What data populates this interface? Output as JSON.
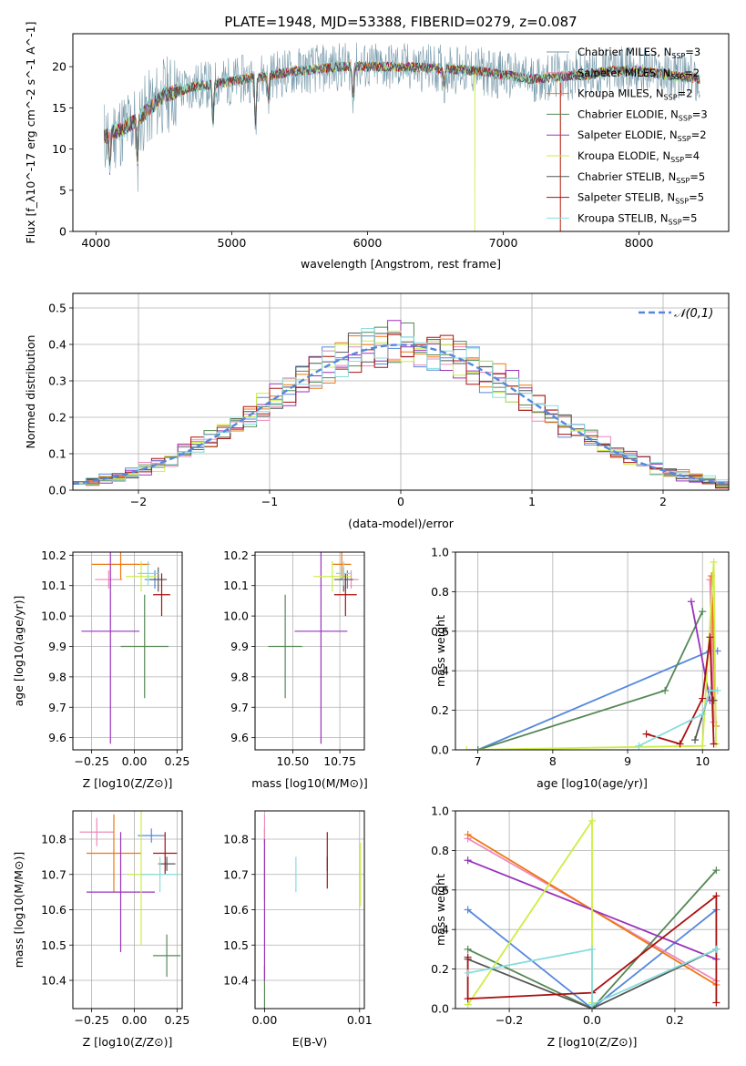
{
  "figure_title": "PLATE=1948, MJD=53388, FIBERID=0279, z=0.087",
  "colors": {
    "chabrier_miles": "#7799aa",
    "salpeter_miles": "#ee88bb",
    "kroupa_miles": "#ee7711",
    "chabrier_elodie": "#558855",
    "salpeter_elodie": "#9933bb",
    "kroupa_elodie": "#ccee44",
    "chabrier_stelib": "#555555",
    "salpeter_stelib": "#aa1111",
    "kroupa_stelib": "#88dddd",
    "normal_curve": "#5588dd"
  },
  "chart_data": [
    {
      "id": "spectrum",
      "type": "line",
      "xlabel": "wavelength [Angstrom, rest frame]",
      "ylabel": "Flux [f_λ10^-17 erg cm^-2 s^-1 A^-1]",
      "xlim": [
        3830,
        8660
      ],
      "ylim": [
        0,
        24
      ],
      "xticks": [
        4000,
        5000,
        6000,
        7000,
        8000
      ],
      "yticks": [
        0,
        5,
        10,
        15,
        20
      ],
      "legend_position": "upper-right",
      "grid": false,
      "continuum": {
        "x": [
          4060,
          4200,
          4300,
          4400,
          4500,
          4700,
          4900,
          5100,
          5300,
          5500,
          5800,
          6000,
          6200,
          6500,
          6800,
          7000,
          7200,
          7400,
          7600,
          7800,
          8000,
          8200,
          8450
        ],
        "y": [
          11.5,
          12.5,
          13.5,
          15.0,
          16.5,
          17.5,
          18.0,
          18.5,
          19.0,
          19.5,
          20.0,
          20.0,
          20.0,
          19.8,
          19.5,
          19.0,
          18.5,
          18.8,
          19.0,
          19.5,
          19.5,
          19.0,
          18.5
        ]
      },
      "absorption_features": [
        {
          "x": 4102,
          "depth": 4
        },
        {
          "x": 4305,
          "depth": 5
        },
        {
          "x": 4862,
          "depth": 5
        },
        {
          "x": 5175,
          "depth": 6
        },
        {
          "x": 5270,
          "depth": 3
        },
        {
          "x": 5892,
          "depth": 4
        },
        {
          "x": 6563,
          "depth": 2
        }
      ],
      "series": [
        {
          "name": "Chabrier MILES, N_SSP=3",
          "label_main": "Chabrier MILES, N",
          "label_sub": "SSP",
          "label_tail": "=3",
          "color": "#7799aa",
          "seed": 11,
          "noise": 3.0,
          "spike_x": null
        },
        {
          "name": "Salpeter MILES, N_SSP=2",
          "label_main": "Salpeter MILES, N",
          "label_sub": "SSP",
          "label_tail": "=2",
          "color": "#ee88bb",
          "seed": 12,
          "noise": 0.6,
          "spike_x": null
        },
        {
          "name": "Kroupa MILES, N_SSP=2",
          "label_main": "Kroupa MILES, N",
          "label_sub": "SSP",
          "label_tail": "=2",
          "color": "#ee7711",
          "seed": 13,
          "noise": 0.6,
          "spike_x": 7420
        },
        {
          "name": "Chabrier ELODIE, N_SSP=3",
          "label_main": "Chabrier ELODIE, N",
          "label_sub": "SSP",
          "label_tail": "=3",
          "color": "#558855",
          "seed": 14,
          "noise": 0.6,
          "spike_x": null
        },
        {
          "name": "Salpeter ELODIE, N_SSP=2",
          "label_main": "Salpeter ELODIE, N",
          "label_sub": "SSP",
          "label_tail": "=2",
          "color": "#9933bb",
          "seed": 15,
          "noise": 0.6,
          "spike_x": null
        },
        {
          "name": "Kroupa ELODIE, N_SSP=4",
          "label_main": "Kroupa ELODIE, N",
          "label_sub": "SSP",
          "label_tail": "=4",
          "color": "#ccee44",
          "seed": 16,
          "noise": 0.6,
          "spike_x": 6790
        },
        {
          "name": "Chabrier STELIB, N_SSP=5",
          "label_main": "Chabrier STELIB, N",
          "label_sub": "SSP",
          "label_tail": "=5",
          "color": "#555555",
          "seed": 17,
          "noise": 0.6,
          "spike_x": null
        },
        {
          "name": "Salpeter STELIB, N_SSP=5",
          "label_main": "Salpeter STELIB, N",
          "label_sub": "SSP",
          "label_tail": "=5",
          "color": "#aa1111",
          "seed": 18,
          "noise": 0.6,
          "spike_x": 7420
        },
        {
          "name": "Kroupa STELIB, N_SSP=5",
          "label_main": "Kroupa STELIB, N",
          "label_sub": "SSP",
          "label_tail": "=5",
          "color": "#88dddd",
          "seed": 19,
          "noise": 0.8,
          "spike_x": null
        }
      ]
    },
    {
      "id": "residuals",
      "type": "histogram",
      "xlabel": "(data-model)/error",
      "ylabel": "Normed distribution",
      "xlim": [
        -2.5,
        2.5
      ],
      "ylim": [
        0,
        0.54
      ],
      "xticks": [
        -2,
        -1,
        0,
        1,
        2
      ],
      "yticks": [
        0.0,
        0.1,
        0.2,
        0.3,
        0.4,
        0.5
      ],
      "grid": true,
      "bin_width": 0.1,
      "legend": {
        "label": "𝒩(0,1)",
        "position": "upper-right"
      },
      "normal_curve": {
        "mean": 0,
        "sigma": 1,
        "color": "#5588dd"
      },
      "series": [
        {
          "name": "Chabrier MILES",
          "color": "#5588dd",
          "seed": 21
        },
        {
          "name": "Salpeter MILES",
          "color": "#ee88bb",
          "seed": 22
        },
        {
          "name": "Kroupa MILES",
          "color": "#ee7711",
          "seed": 23
        },
        {
          "name": "Chabrier ELODIE",
          "color": "#558855",
          "seed": 24
        },
        {
          "name": "Salpeter ELODIE",
          "color": "#9933bb",
          "seed": 25
        },
        {
          "name": "Kroupa ELODIE",
          "color": "#ccee44",
          "seed": 26
        },
        {
          "name": "Chabrier STELIB",
          "color": "#555555",
          "seed": 27
        },
        {
          "name": "Salpeter STELIB",
          "color": "#aa1111",
          "seed": 28
        },
        {
          "name": "Kroupa STELIB",
          "color": "#88dddd",
          "seed": 29
        }
      ]
    },
    {
      "id": "age_vs_z",
      "type": "errorbar",
      "xlabel": "Z [log10(Z/Z⊙)]",
      "ylabel": "age [log10(age/yr)]",
      "xlim": [
        -0.36,
        0.28
      ],
      "ylim": [
        9.56,
        10.21
      ],
      "xticks": [
        -0.25,
        0.0,
        0.25
      ],
      "xticklabels": [
        "−0.25",
        "0.00",
        "0.25"
      ],
      "yticks": [
        9.6,
        9.7,
        9.8,
        9.9,
        10.0,
        10.1,
        10.2
      ],
      "grid": true,
      "points": [
        {
          "x": 0.12,
          "y": 10.12,
          "xerr": 0.06,
          "yerr": 0.03,
          "color": "#5588dd"
        },
        {
          "x": -0.15,
          "y": 10.12,
          "xerr": 0.08,
          "yerr": 0.03,
          "color": "#ee88bb"
        },
        {
          "x": -0.08,
          "y": 10.17,
          "xerr": 0.17,
          "yerr": 0.05,
          "color": "#ee7711"
        },
        {
          "x": 0.06,
          "y": 9.9,
          "xerr": 0.14,
          "yerr": 0.17,
          "color": "#558855"
        },
        {
          "x": -0.14,
          "y": 9.95,
          "xerr": 0.17,
          "yerr": 0.37,
          "color": "#9933bb"
        },
        {
          "x": 0.04,
          "y": 10.13,
          "xerr": 0.09,
          "yerr": 0.05,
          "color": "#ccee44"
        },
        {
          "x": 0.14,
          "y": 10.12,
          "xerr": 0.05,
          "yerr": 0.04,
          "color": "#555555"
        },
        {
          "x": 0.16,
          "y": 10.07,
          "xerr": 0.05,
          "yerr": 0.07,
          "color": "#aa1111"
        },
        {
          "x": 0.08,
          "y": 10.14,
          "xerr": 0.06,
          "yerr": 0.04,
          "color": "#88dddd"
        }
      ]
    },
    {
      "id": "age_vs_mass",
      "type": "errorbar",
      "xlabel": "mass [log10(M/M⊙)]",
      "ylabel": "",
      "xlim": [
        10.3,
        10.88
      ],
      "ylim": [
        9.56,
        10.21
      ],
      "xticks": [
        10.5,
        10.75
      ],
      "xticklabels": [
        "10.50",
        "10.75"
      ],
      "yticks": [
        9.6,
        9.7,
        9.8,
        9.9,
        10.0,
        10.1,
        10.2
      ],
      "grid": true,
      "points": [
        {
          "x": 10.79,
          "y": 10.12,
          "xerr": 0.05,
          "yerr": 0.03,
          "color": "#5588dd"
        },
        {
          "x": 10.81,
          "y": 10.12,
          "xerr": 0.04,
          "yerr": 0.03,
          "color": "#ee88bb"
        },
        {
          "x": 10.76,
          "y": 10.17,
          "xerr": 0.05,
          "yerr": 0.05,
          "color": "#ee7711"
        },
        {
          "x": 10.46,
          "y": 9.9,
          "xerr": 0.09,
          "yerr": 0.17,
          "color": "#558855"
        },
        {
          "x": 10.65,
          "y": 9.95,
          "xerr": 0.14,
          "yerr": 0.37,
          "color": "#9933bb"
        },
        {
          "x": 10.71,
          "y": 10.13,
          "xerr": 0.1,
          "yerr": 0.05,
          "color": "#ccee44"
        },
        {
          "x": 10.77,
          "y": 10.12,
          "xerr": 0.05,
          "yerr": 0.04,
          "color": "#555555"
        },
        {
          "x": 10.78,
          "y": 10.07,
          "xerr": 0.06,
          "yerr": 0.07,
          "color": "#aa1111"
        },
        {
          "x": 10.77,
          "y": 10.14,
          "xerr": 0.04,
          "yerr": 0.04,
          "color": "#88dddd"
        }
      ]
    },
    {
      "id": "weight_vs_age",
      "type": "line",
      "xlabel": "age [log10(age/yr)]",
      "ylabel": "mass weight",
      "xlim": [
        6.7,
        10.35
      ],
      "ylim": [
        0,
        1.0
      ],
      "xticks": [
        7,
        8,
        9,
        10
      ],
      "yticks": [
        0.0,
        0.2,
        0.4,
        0.6,
        0.8,
        1.0
      ],
      "grid": true,
      "series": [
        {
          "name": "Chabrier MILES",
          "color": "#5588dd",
          "x": [
            7.0,
            10.1,
            10.2
          ],
          "y": [
            0.0,
            0.5,
            0.5
          ]
        },
        {
          "name": "Salpeter MILES",
          "color": "#ee88bb",
          "x": [
            10.1,
            10.15
          ],
          "y": [
            0.86,
            0.14
          ]
        },
        {
          "name": "Kroupa MILES",
          "color": "#ee7711",
          "x": [
            10.12,
            10.18
          ],
          "y": [
            0.88,
            0.12
          ]
        },
        {
          "name": "Chabrier ELODIE",
          "color": "#558855",
          "x": [
            7.0,
            9.5,
            10.0
          ],
          "y": [
            0.0,
            0.3,
            0.7
          ]
        },
        {
          "name": "Salpeter ELODIE",
          "color": "#9933bb",
          "x": [
            9.85,
            10.1
          ],
          "y": [
            0.75,
            0.25
          ]
        },
        {
          "name": "Kroupa ELODIE",
          "color": "#ccee44",
          "x": [
            6.85,
            10.0,
            10.15,
            10.18
          ],
          "y": [
            0.0,
            0.02,
            0.95,
            0.03
          ]
        },
        {
          "name": "Chabrier STELIB",
          "color": "#555555",
          "x": [
            9.9,
            10.1,
            10.15
          ],
          "y": [
            0.05,
            0.3,
            0.25
          ]
        },
        {
          "name": "Salpeter STELIB",
          "color": "#aa1111",
          "x": [
            9.25,
            9.7,
            10.0,
            10.1,
            10.15
          ],
          "y": [
            0.08,
            0.03,
            0.26,
            0.57,
            0.03
          ]
        },
        {
          "name": "Kroupa STELIB",
          "color": "#88dddd",
          "x": [
            9.15,
            10.0,
            10.1,
            10.2
          ],
          "y": [
            0.02,
            0.18,
            0.3,
            0.3
          ]
        }
      ]
    },
    {
      "id": "mass_vs_z",
      "type": "errorbar",
      "xlabel": "Z [log10(Z/Z⊙)]",
      "ylabel": "mass [log10(M/M⊙)]",
      "xlim": [
        -0.36,
        0.28
      ],
      "ylim": [
        10.32,
        10.88
      ],
      "xticks": [
        -0.25,
        0.0,
        0.25
      ],
      "xticklabels": [
        "−0.25",
        "0.00",
        "0.25"
      ],
      "yticks": [
        10.4,
        10.5,
        10.6,
        10.7,
        10.8
      ],
      "grid": true,
      "points": [
        {
          "x": 0.1,
          "y": 10.81,
          "xerr": 0.08,
          "yerr": 0.02,
          "color": "#5588dd"
        },
        {
          "x": -0.22,
          "y": 10.82,
          "xerr": 0.1,
          "yerr": 0.04,
          "color": "#ee88bb"
        },
        {
          "x": -0.12,
          "y": 10.76,
          "xerr": 0.16,
          "yerr": 0.11,
          "color": "#ee7711"
        },
        {
          "x": 0.19,
          "y": 10.47,
          "xerr": 0.08,
          "yerr": 0.06,
          "color": "#558855"
        },
        {
          "x": -0.08,
          "y": 10.65,
          "xerr": 0.2,
          "yerr": 0.17,
          "color": "#9933bb"
        },
        {
          "x": 0.04,
          "y": 10.7,
          "xerr": 0.08,
          "yerr": 0.2,
          "color": "#ccee44"
        },
        {
          "x": 0.19,
          "y": 10.73,
          "xerr": 0.05,
          "yerr": 0.02,
          "color": "#555555"
        },
        {
          "x": 0.18,
          "y": 10.76,
          "xerr": 0.07,
          "yerr": 0.06,
          "color": "#aa1111"
        },
        {
          "x": 0.15,
          "y": 10.7,
          "xerr": 0.11,
          "yerr": 0.05,
          "color": "#88dddd"
        }
      ]
    },
    {
      "id": "mass_vs_ebv",
      "type": "errorbar",
      "xlabel": "E(B-V)",
      "ylabel": "",
      "xlim": [
        -0.001,
        0.0105
      ],
      "ylim": [
        10.32,
        10.88
      ],
      "xticks": [
        0.0,
        0.01
      ],
      "xticklabels": [
        "0.00",
        "0.01"
      ],
      "yticks": [
        10.4,
        10.5,
        10.6,
        10.7,
        10.8
      ],
      "grid": true,
      "points": [
        {
          "x": 0.0,
          "y": 10.81,
          "xerr": 0,
          "yerr": 0.02,
          "color": "#5588dd"
        },
        {
          "x": 0.0,
          "y": 10.82,
          "xerr": 0,
          "yerr": 0.05,
          "color": "#ee88bb"
        },
        {
          "x": 0.0,
          "y": 10.7,
          "xerr": 0,
          "yerr": 0.07,
          "color": "#ee7711"
        },
        {
          "x": 0.0,
          "y": 10.38,
          "xerr": 0,
          "yerr": 0.06,
          "color": "#558855"
        },
        {
          "x": 0.0,
          "y": 10.6,
          "xerr": 0,
          "yerr": 0.2,
          "color": "#9933bb"
        },
        {
          "x": 0.0101,
          "y": 10.7,
          "xerr": 0,
          "yerr": 0.09,
          "color": "#ccee44"
        },
        {
          "x": 0.0066,
          "y": 10.73,
          "xerr": 0,
          "yerr": 0.02,
          "color": "#555555"
        },
        {
          "x": 0.0066,
          "y": 10.74,
          "xerr": 0,
          "yerr": 0.08,
          "color": "#aa1111"
        },
        {
          "x": 0.0033,
          "y": 10.7,
          "xerr": 0,
          "yerr": 0.05,
          "color": "#88dddd"
        }
      ]
    },
    {
      "id": "weight_vs_z",
      "type": "line",
      "xlabel": "Z [log10(Z/Z⊙)]",
      "ylabel": "mass weight",
      "xlim": [
        -0.33,
        0.33
      ],
      "ylim": [
        0,
        1.0
      ],
      "xticks": [
        -0.2,
        0.0,
        0.2
      ],
      "xticklabels": [
        "−0.2",
        "0.0",
        "0.2"
      ],
      "yticks": [
        0.0,
        0.2,
        0.4,
        0.6,
        0.8,
        1.0
      ],
      "grid": true,
      "series": [
        {
          "name": "Chabrier MILES",
          "color": "#5588dd",
          "x": [
            -0.3,
            0.0,
            0.3
          ],
          "y": [
            0.5,
            0.0,
            0.5
          ]
        },
        {
          "name": "Salpeter MILES",
          "color": "#ee88bb",
          "x": [
            -0.3,
            0.3
          ],
          "y": [
            0.86,
            0.14
          ]
        },
        {
          "name": "Kroupa MILES",
          "color": "#ee7711",
          "x": [
            -0.3,
            0.3
          ],
          "y": [
            0.88,
            0.12
          ]
        },
        {
          "name": "Chabrier ELODIE",
          "color": "#558855",
          "x": [
            -0.3,
            0.0,
            0.3
          ],
          "y": [
            0.3,
            0.0,
            0.7
          ]
        },
        {
          "name": "Salpeter ELODIE",
          "color": "#9933bb",
          "x": [
            -0.3,
            0.3
          ],
          "y": [
            0.75,
            0.25
          ]
        },
        {
          "name": "Kroupa ELODIE",
          "color": "#ccee44",
          "x": [
            -0.3,
            0.0,
            0.0
          ],
          "y": [
            0.02,
            0.95,
            0.03
          ]
        },
        {
          "name": "Chabrier STELIB",
          "color": "#555555",
          "x": [
            -0.3,
            0.0,
            0.3
          ],
          "y": [
            0.25,
            0.0,
            0.3
          ]
        },
        {
          "name": "Salpeter STELIB",
          "color": "#aa1111",
          "x": [
            -0.3,
            -0.3,
            0.0,
            0.3,
            0.3
          ],
          "y": [
            0.26,
            0.05,
            0.08,
            0.57,
            0.03
          ]
        },
        {
          "name": "Kroupa STELIB",
          "color": "#88dddd",
          "x": [
            -0.3,
            0.0,
            0.0,
            0.3
          ],
          "y": [
            0.18,
            0.3,
            0.02,
            0.3
          ]
        }
      ]
    }
  ]
}
